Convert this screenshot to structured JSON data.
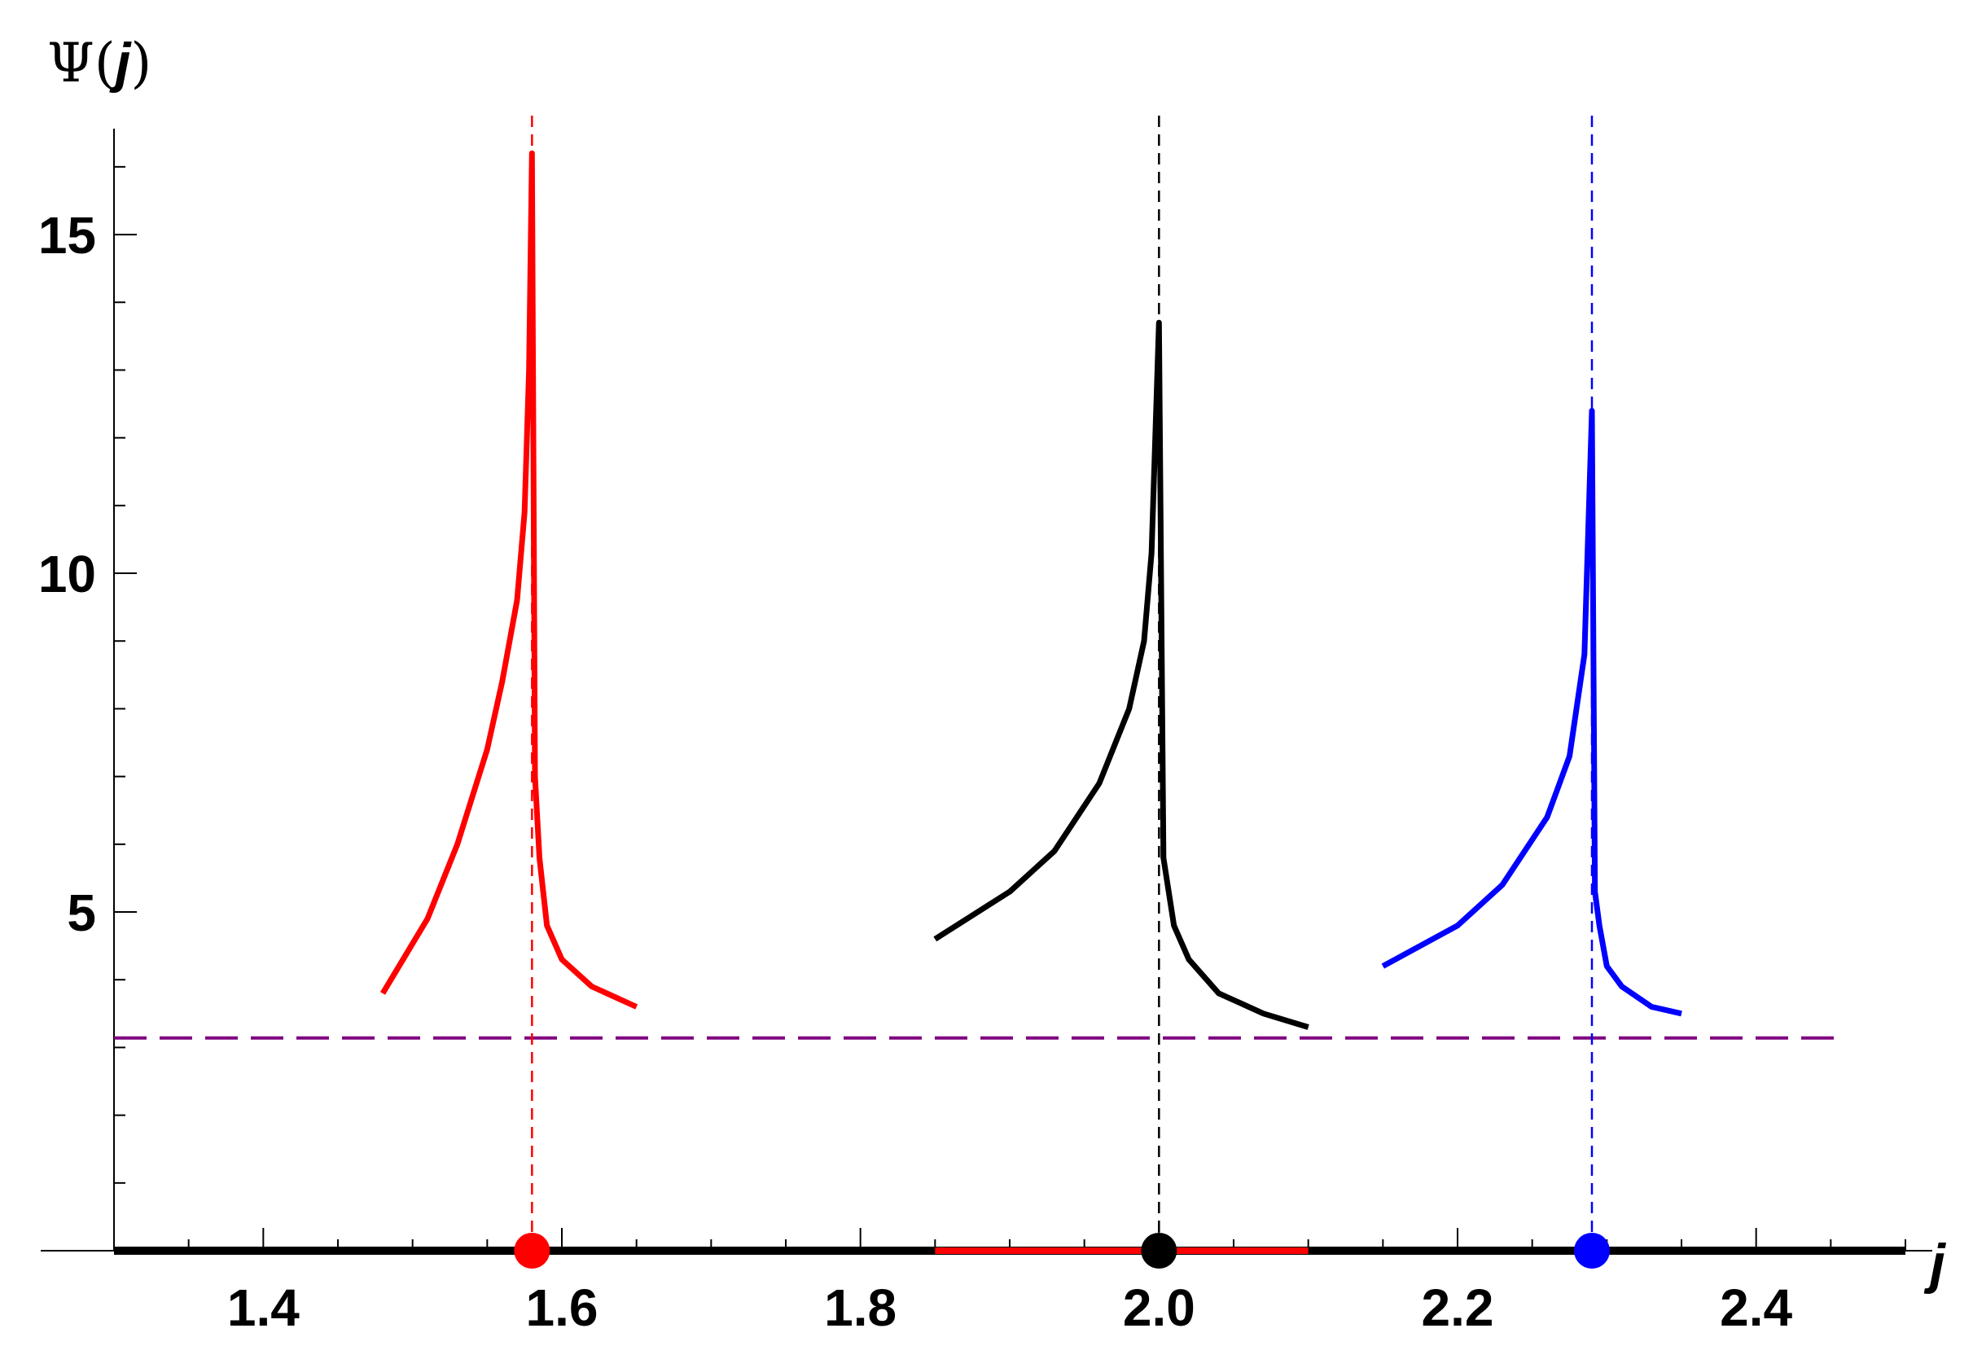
{
  "chart_data": {
    "type": "line",
    "ylabel": "Ψ(j)",
    "ylabel_parts": {
      "symbol": "Ψ(",
      "var": "j",
      "close": ")"
    },
    "xlabel": "j",
    "xlim": [
      1.3,
      2.5
    ],
    "ylim": [
      0,
      16.9
    ],
    "x_tick_labels": [
      "1.4",
      "1.6",
      "1.8",
      "2.0",
      "2.2",
      "2.4"
    ],
    "x_ticks": [
      1.4,
      1.6,
      1.8,
      2.0,
      2.2,
      2.4
    ],
    "y_tick_labels": [
      "5",
      "10",
      "15"
    ],
    "y_ticks": [
      5,
      10,
      15
    ],
    "grid": false,
    "series": [
      {
        "color": "#ff0000",
        "x": [
          1.48,
          1.51,
          1.53,
          1.55,
          1.56,
          1.57,
          1.575,
          1.578,
          1.58,
          1.58,
          1.582,
          1.585,
          1.59,
          1.6,
          1.62,
          1.65
        ],
        "y": [
          3.8,
          4.9,
          6.0,
          7.4,
          8.4,
          9.6,
          10.9,
          13.0,
          16.2,
          16.2,
          7.0,
          5.8,
          4.8,
          4.3,
          3.9,
          3.6
        ]
      },
      {
        "color": "#000000",
        "x": [
          1.85,
          1.9,
          1.93,
          1.96,
          1.98,
          1.99,
          1.995,
          2.0,
          2.0,
          2.003,
          2.01,
          2.02,
          2.04,
          2.07,
          2.1
        ],
        "y": [
          4.6,
          5.3,
          5.9,
          6.9,
          8.0,
          9.0,
          10.3,
          13.7,
          13.7,
          5.8,
          4.8,
          4.3,
          3.8,
          3.5,
          3.3
        ],
        "baseline_segment": [
          1.85,
          2.1
        ],
        "baseline_segment_color": "#ff0000"
      },
      {
        "color": "#0000ff",
        "x": [
          2.15,
          2.2,
          2.23,
          2.26,
          2.275,
          2.285,
          2.29,
          2.29,
          2.292,
          2.295,
          2.3,
          2.31,
          2.33,
          2.35
        ],
        "y": [
          4.2,
          4.8,
          5.4,
          6.4,
          7.3,
          8.8,
          12.4,
          12.4,
          5.3,
          4.8,
          4.2,
          3.9,
          3.6,
          3.5
        ]
      }
    ],
    "vertical_lines": [
      {
        "x": 1.58,
        "color": "#ff0000"
      },
      {
        "x": 2.0,
        "color": "#000000"
      },
      {
        "x": 2.29,
        "color": "#0000ff"
      }
    ],
    "horizontal_line": {
      "y": 3.14,
      "color": "#800080"
    },
    "points": [
      {
        "x": 1.58,
        "y": 0,
        "color": "#ff0000"
      },
      {
        "x": 2.0,
        "y": 0,
        "color": "#000000"
      },
      {
        "x": 2.29,
        "y": 0,
        "color": "#0000ff"
      }
    ]
  }
}
